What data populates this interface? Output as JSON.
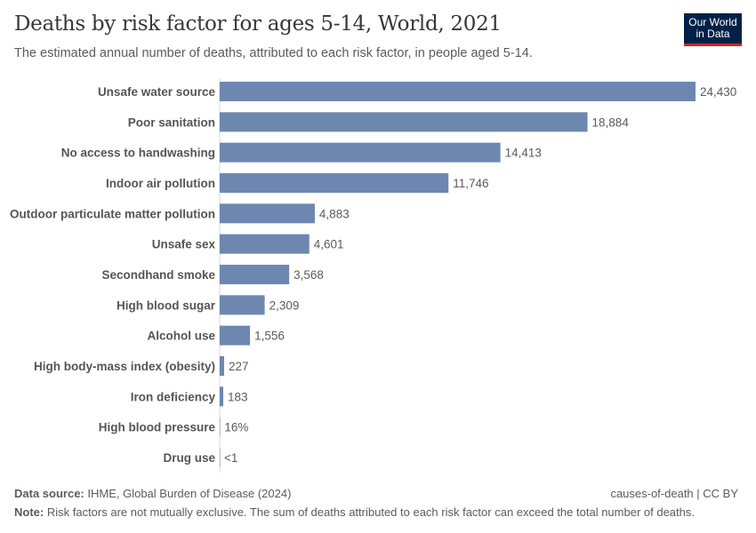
{
  "title": "Deaths by risk factor for ages 5-14, World, 2021",
  "subtitle": "The estimated annual number of deaths, attributed to each risk factor, in people aged 5-14.",
  "logo": "Our World in Data",
  "footer": {
    "source_label": "Data source:",
    "source": "IHME, Global Burden of Disease (2024)",
    "license": "causes-of-death | CC BY",
    "note_label": "Note:",
    "note": "Risk factors are not mutually exclusive. The sum of deaths attributed to each risk factor can exceed the total number of deaths."
  },
  "colors": {
    "bar": "#6d87b0"
  },
  "chart_data": {
    "type": "bar",
    "orientation": "horizontal",
    "categories": [
      "Unsafe water source",
      "Poor sanitation",
      "No access to handwashing",
      "Indoor air pollution",
      "Outdoor particulate matter pollution",
      "Unsafe sex",
      "Secondhand smoke",
      "High blood sugar",
      "Alcohol use",
      "High body-mass index (obesity)",
      "Iron deficiency",
      "High blood pressure",
      "Drug use"
    ],
    "values": [
      24430,
      18884,
      14413,
      11746,
      4883,
      4601,
      3568,
      2309,
      1556,
      227,
      183,
      16,
      0.5
    ],
    "labels": [
      "24,430",
      "18,884",
      "14,413",
      "11,746",
      "4,883",
      "4,601",
      "3,568",
      "2,309",
      "1,556",
      "227",
      "183",
      "16%",
      "<1"
    ]
  }
}
